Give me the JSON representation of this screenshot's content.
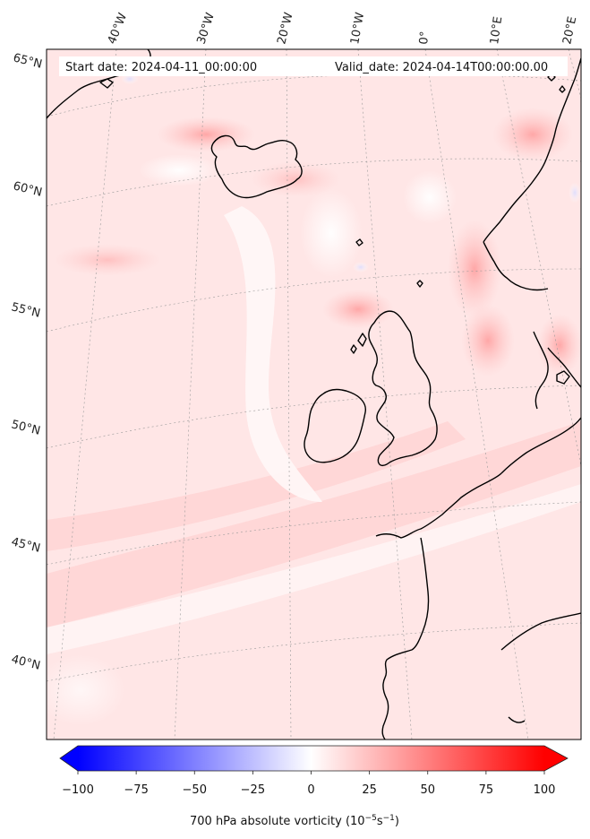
{
  "header": {
    "start_date": "Start date: 2024-04-11_00:00:00",
    "valid_date": "Valid_date: 2024-04-14T00:00:00.00"
  },
  "map": {
    "region": "North Atlantic / Western Europe",
    "field": "700 hPa absolute vorticity",
    "lon_labels": [
      "40°W",
      "30°W",
      "20°W",
      "10°W",
      "0°",
      "10°E",
      "20°E"
    ],
    "lat_labels": [
      "65°N",
      "60°N",
      "55°N",
      "50°N",
      "45°N",
      "40°N"
    ],
    "dominant_color": "#ffe3e3",
    "max_color": "#ff0000",
    "min_color": "#0000ff"
  },
  "colorbar": {
    "min": -100,
    "max": 100,
    "ticks": [
      "−100",
      "−75",
      "−50",
      "−25",
      "0",
      "25",
      "50",
      "75",
      "100"
    ],
    "title_main": "700 hPa absolute vorticity (10",
    "title_exp1": "−5",
    "title_mid": "s",
    "title_exp2": "−1",
    "title_end": ")",
    "extend": "both",
    "cmap": "bwr"
  }
}
